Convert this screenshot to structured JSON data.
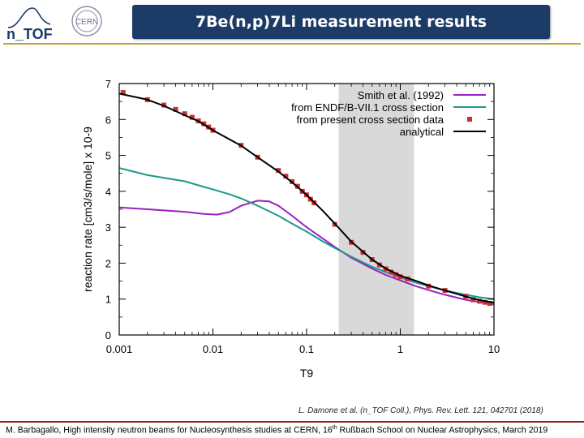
{
  "header": {
    "logo_ntof": "n_TOF",
    "logo_cern": "CERN",
    "title": "7Be(n,p)7Li measurement results"
  },
  "chart_data": {
    "type": "line",
    "xlabel": "T9",
    "ylabel": "reaction rate [cm3/s/mole] x 10-9",
    "x_scale": "log",
    "xlim": [
      0.001,
      10
    ],
    "ylim": [
      0,
      7
    ],
    "x_ticks": [
      "0.001",
      "0.01",
      "0.1",
      "1",
      "10"
    ],
    "y_ticks": [
      "0",
      "1",
      "2",
      "3",
      "4",
      "5",
      "6",
      "7"
    ],
    "grid": false,
    "legend_position": "top-right",
    "shaded_region": [
      0.22,
      1.4
    ],
    "series": [
      {
        "name": "Smith et al. (1992)",
        "kind": "line",
        "color": "#9b1fc4",
        "x": [
          0.001,
          0.002,
          0.005,
          0.008,
          0.011,
          0.015,
          0.02,
          0.03,
          0.04,
          0.05,
          0.07,
          0.1,
          0.15,
          0.2,
          0.3,
          0.5,
          0.7,
          1,
          1.5,
          2,
          3,
          5,
          7,
          10
        ],
        "y": [
          3.55,
          3.5,
          3.43,
          3.37,
          3.35,
          3.42,
          3.6,
          3.74,
          3.72,
          3.6,
          3.32,
          3.0,
          2.68,
          2.45,
          2.15,
          1.85,
          1.67,
          1.52,
          1.35,
          1.25,
          1.12,
          0.98,
          0.92,
          0.85
        ]
      },
      {
        "name": "from ENDF/B-VII.1 cross section",
        "kind": "line",
        "color": "#1a9a8a",
        "x": [
          0.001,
          0.002,
          0.005,
          0.01,
          0.015,
          0.02,
          0.03,
          0.05,
          0.07,
          0.1,
          0.15,
          0.2,
          0.3,
          0.5,
          0.7,
          1,
          1.5,
          2,
          3,
          5,
          7,
          10
        ],
        "y": [
          4.65,
          4.45,
          4.28,
          4.05,
          3.92,
          3.8,
          3.6,
          3.32,
          3.1,
          2.88,
          2.6,
          2.42,
          2.18,
          1.9,
          1.75,
          1.6,
          1.45,
          1.36,
          1.24,
          1.12,
          1.05,
          1.0
        ]
      },
      {
        "name": "from present cross section data",
        "kind": "scatter",
        "color": "#c83232",
        "x": [
          0.0011,
          0.002,
          0.003,
          0.004,
          0.005,
          0.006,
          0.007,
          0.008,
          0.009,
          0.01,
          0.02,
          0.03,
          0.05,
          0.06,
          0.07,
          0.08,
          0.09,
          0.1,
          0.11,
          0.12,
          0.2,
          0.3,
          0.4,
          0.5,
          0.6,
          0.7,
          0.8,
          0.9,
          1.0,
          1.2,
          2,
          3,
          5,
          6,
          7,
          8,
          9
        ],
        "y": [
          6.75,
          6.55,
          6.4,
          6.28,
          6.16,
          6.06,
          5.96,
          5.88,
          5.79,
          5.7,
          5.28,
          4.95,
          4.58,
          4.42,
          4.27,
          4.14,
          4.0,
          3.9,
          3.78,
          3.68,
          3.08,
          2.58,
          2.3,
          2.1,
          1.95,
          1.84,
          1.75,
          1.68,
          1.62,
          1.56,
          1.36,
          1.24,
          1.08,
          0.98,
          0.94,
          0.91,
          0.88
        ]
      },
      {
        "name": "analytical",
        "kind": "line",
        "color": "#000000",
        "x": [
          0.001,
          0.002,
          0.003,
          0.005,
          0.007,
          0.01,
          0.02,
          0.03,
          0.05,
          0.07,
          0.1,
          0.15,
          0.2,
          0.3,
          0.5,
          0.7,
          1,
          1.5,
          2,
          3,
          5,
          7,
          10
        ],
        "y": [
          6.72,
          6.55,
          6.38,
          6.12,
          5.95,
          5.7,
          5.27,
          4.95,
          4.55,
          4.25,
          3.9,
          3.45,
          3.1,
          2.6,
          2.1,
          1.85,
          1.65,
          1.5,
          1.38,
          1.24,
          1.07,
          0.97,
          0.9
        ]
      }
    ]
  },
  "citation": "L. Damone et al. (n_TOF Coll.), Phys. Rev. Lett. 121, 042701 (2018)",
  "footer": {
    "pre": "M. Barbagallo, High intensity neutron beams for Nucleosynthesis studies at CERN, 16",
    "sup": "th",
    "post": " Rußbach School on Nuclear Astrophysics, March  2019"
  },
  "colors": {
    "title_bar": "#1c3b66",
    "shade": "#d9d9d9",
    "rule_top": "#c9a13a",
    "rule_bottom": "#9a1b1b"
  }
}
